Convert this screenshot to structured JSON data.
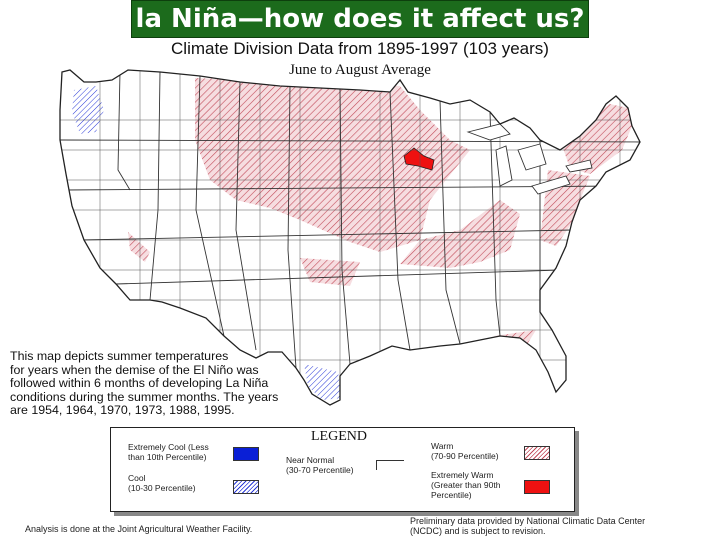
{
  "banner": {
    "title": "la Niña—how does it affect us?"
  },
  "map": {
    "title": "Climate Division Data from 1895-1997 (103 years)",
    "subtitle": "June to August Average",
    "colors": {
      "warm_hatch": "#c24b5a",
      "warm_fill": "#f6dde0",
      "cool_hatch": "#2a3ad8",
      "extremely_warm": "#ee1111",
      "extremely_cool": "#0a1fd6",
      "outline": "#333333"
    }
  },
  "description": {
    "lines": [
      "This map depicts summer temperatures",
      "for years when the demise of the El Niño was",
      "followed within 6 months of developing La Niña",
      "conditions during the summer months.  The years",
      "are 1954, 1964, 1970, 1973, 1988, 1995."
    ]
  },
  "legend": {
    "title": "LEGEND",
    "items": [
      {
        "label": "Extremely Cool (Less\nthan 10th Percentile)",
        "swatch": "solid-blue"
      },
      {
        "label": "Cool\n(10-30 Percentile)",
        "swatch": "hatch-blue"
      },
      {
        "label": "Near Normal\n(30-70 Percentile)",
        "swatch": "normal"
      },
      {
        "label": "Warm\n(70-90 Percentile)",
        "swatch": "hatch-red"
      },
      {
        "label": "Extremely Warm\n(Greater than 90th\nPercentile)",
        "swatch": "solid-red"
      }
    ]
  },
  "footer": {
    "left": "Analysis is done at the Joint Agricultural Weather Facility.",
    "right_lines": [
      "Preliminary data provided by National Climatic Data Center",
      "(NCDC) and is subject to revision."
    ]
  }
}
